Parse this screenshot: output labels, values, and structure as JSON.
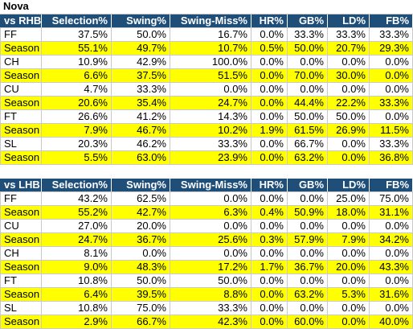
{
  "title": "Nova",
  "columns": [
    "Selection%",
    "Swing%",
    "Swing-Miss%",
    "HR%",
    "GB%",
    "LD%",
    "FB%"
  ],
  "vs_rhb": {
    "label": "vs RHB",
    "rows": [
      {
        "pitch": "FF",
        "season": false,
        "values": [
          "37.5%",
          "50.0%",
          "16.7%",
          "0.0%",
          "33.3%",
          "33.3%",
          "33.3%"
        ]
      },
      {
        "pitch": "Season",
        "season": true,
        "values": [
          "55.1%",
          "49.7%",
          "10.7%",
          "0.5%",
          "50.0%",
          "20.7%",
          "29.3%"
        ]
      },
      {
        "pitch": "CH",
        "season": false,
        "values": [
          "10.9%",
          "42.9%",
          "100.0%",
          "0.0%",
          "0.0%",
          "0.0%",
          "0.0%"
        ]
      },
      {
        "pitch": "Season",
        "season": true,
        "values": [
          "6.6%",
          "37.5%",
          "51.5%",
          "0.0%",
          "70.0%",
          "30.0%",
          "0.0%"
        ]
      },
      {
        "pitch": "CU",
        "season": false,
        "values": [
          "4.7%",
          "33.3%",
          "0.0%",
          "0.0%",
          "0.0%",
          "0.0%",
          "0.0%"
        ]
      },
      {
        "pitch": "Season",
        "season": true,
        "values": [
          "20.6%",
          "35.4%",
          "24.7%",
          "0.0%",
          "44.4%",
          "22.2%",
          "33.3%"
        ]
      },
      {
        "pitch": "FT",
        "season": false,
        "values": [
          "26.6%",
          "41.2%",
          "14.3%",
          "0.0%",
          "50.0%",
          "50.0%",
          "0.0%"
        ]
      },
      {
        "pitch": "Season",
        "season": true,
        "values": [
          "7.9%",
          "46.7%",
          "10.2%",
          "1.9%",
          "61.5%",
          "26.9%",
          "11.5%"
        ]
      },
      {
        "pitch": "SL",
        "season": false,
        "values": [
          "20.3%",
          "46.2%",
          "33.3%",
          "0.0%",
          "66.7%",
          "0.0%",
          "33.3%"
        ]
      },
      {
        "pitch": "Season",
        "season": true,
        "values": [
          "5.5%",
          "63.0%",
          "23.9%",
          "0.0%",
          "63.2%",
          "0.0%",
          "36.8%"
        ]
      }
    ]
  },
  "vs_lhb": {
    "label": "vs LHB",
    "rows": [
      {
        "pitch": "FF",
        "season": false,
        "values": [
          "43.2%",
          "62.5%",
          "0.0%",
          "0.0%",
          "0.0%",
          "25.0%",
          "75.0%"
        ]
      },
      {
        "pitch": "Season",
        "season": true,
        "values": [
          "55.2%",
          "42.7%",
          "6.3%",
          "0.4%",
          "50.9%",
          "18.0%",
          "31.1%"
        ]
      },
      {
        "pitch": "CU",
        "season": false,
        "values": [
          "27.0%",
          "20.0%",
          "0.0%",
          "0.0%",
          "0.0%",
          "0.0%",
          "0.0%"
        ]
      },
      {
        "pitch": "Season",
        "season": true,
        "values": [
          "24.7%",
          "36.7%",
          "25.6%",
          "0.3%",
          "57.9%",
          "7.9%",
          "34.2%"
        ]
      },
      {
        "pitch": "CH",
        "season": false,
        "values": [
          "8.1%",
          "0.0%",
          "0.0%",
          "0.0%",
          "0.0%",
          "0.0%",
          "0.0%"
        ]
      },
      {
        "pitch": "Season",
        "season": true,
        "values": [
          "9.0%",
          "48.3%",
          "17.2%",
          "1.7%",
          "36.7%",
          "20.0%",
          "43.3%"
        ]
      },
      {
        "pitch": "FT",
        "season": false,
        "values": [
          "10.8%",
          "50.0%",
          "50.0%",
          "0.0%",
          "0.0%",
          "0.0%",
          "0.0%"
        ]
      },
      {
        "pitch": "Season",
        "season": true,
        "values": [
          "6.4%",
          "39.5%",
          "8.8%",
          "0.0%",
          "63.2%",
          "5.3%",
          "31.6%"
        ]
      },
      {
        "pitch": "SL",
        "season": false,
        "values": [
          "10.8%",
          "75.0%",
          "33.3%",
          "0.0%",
          "0.0%",
          "0.0%",
          "0.0%"
        ]
      },
      {
        "pitch": "Season",
        "season": true,
        "values": [
          "2.9%",
          "66.7%",
          "42.3%",
          "0.0%",
          "60.0%",
          "0.0%",
          "40.0%"
        ]
      }
    ]
  }
}
